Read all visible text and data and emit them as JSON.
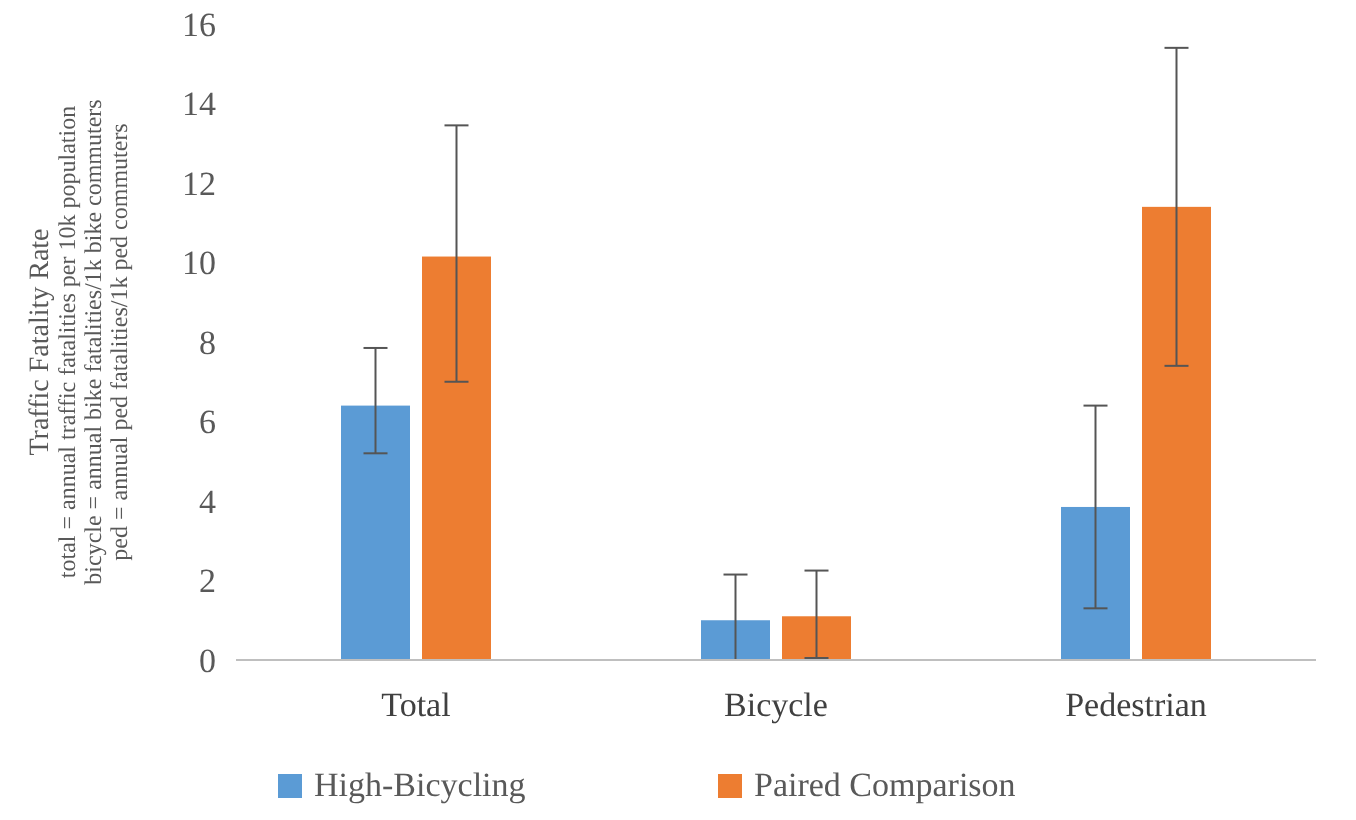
{
  "chart_data": {
    "type": "bar",
    "ylabel": "Traffic Fatality Rate\ntotal = annual traffic fatalities per 10k population\nbicycle = annual bike fatalities/1k bike commuters\nped = annual ped fatalities/1k ped commuters",
    "categories": [
      "Total",
      "Bicycle",
      "Pedestrian"
    ],
    "series": [
      {
        "name": "High-Bicycling",
        "color": "#5b9bd5",
        "values": [
          6.4,
          1.0,
          3.85
        ],
        "errors": [
          [
            5.2,
            7.85
          ],
          [
            0,
            2.15
          ],
          [
            1.3,
            6.4
          ]
        ]
      },
      {
        "name": "Paired Comparison",
        "color": "#ed7d31",
        "values": [
          10.15,
          1.1,
          11.4
        ],
        "errors": [
          [
            7.0,
            13.45
          ],
          [
            0.05,
            2.25
          ],
          [
            7.4,
            15.4
          ]
        ]
      }
    ],
    "ylim": [
      0,
      16
    ],
    "yticks": [
      0,
      2,
      4,
      6,
      8,
      10,
      12,
      14,
      16
    ],
    "legend": "bottom",
    "grid": false
  }
}
